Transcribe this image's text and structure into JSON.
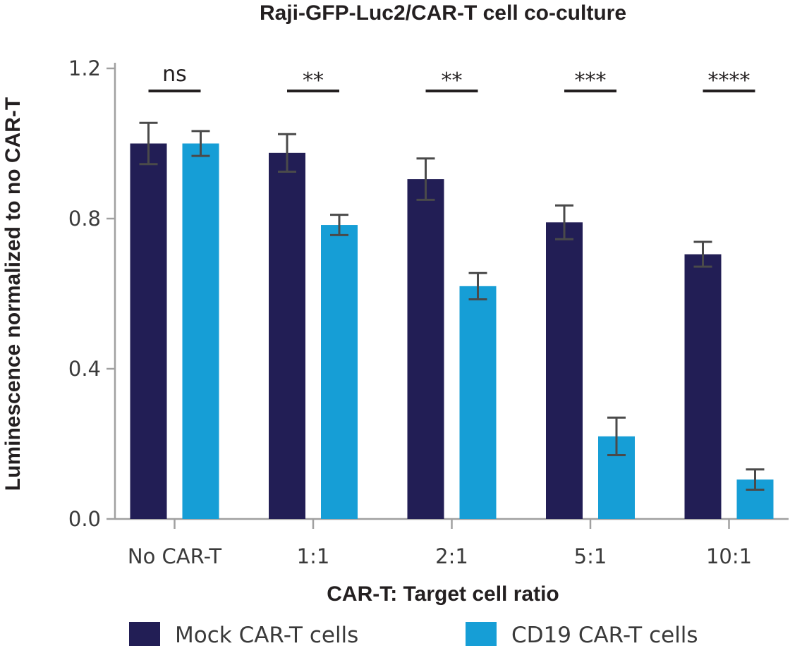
{
  "chart_data": {
    "type": "bar",
    "title": "Raji-GFP-Luc2/CAR-T cell co-culture",
    "xlabel": "CAR-T: Target cell ratio",
    "ylabel": "Luminescence normalized to no CAR-T",
    "categories": [
      "No CAR-T",
      "1:1",
      "2:1",
      "5:1",
      "10:1"
    ],
    "ylim": [
      0,
      1.2
    ],
    "yticks": [
      "0.0",
      "0.4",
      "0.8",
      "1.2"
    ],
    "grid": false,
    "legend_position": "bottom",
    "series": [
      {
        "name": "Mock CAR-T cells",
        "color": "#221e55",
        "values": [
          1.0,
          0.975,
          0.905,
          0.79,
          0.705
        ],
        "errors": [
          0.055,
          0.05,
          0.055,
          0.045,
          0.033
        ]
      },
      {
        "name": "CD19 CAR-T cells",
        "color": "#169ed6",
        "values": [
          1.0,
          0.783,
          0.62,
          0.22,
          0.105
        ],
        "errors": [
          0.033,
          0.027,
          0.035,
          0.05,
          0.027
        ]
      }
    ],
    "significance": [
      "ns",
      "**",
      "**",
      "***",
      "****"
    ]
  }
}
